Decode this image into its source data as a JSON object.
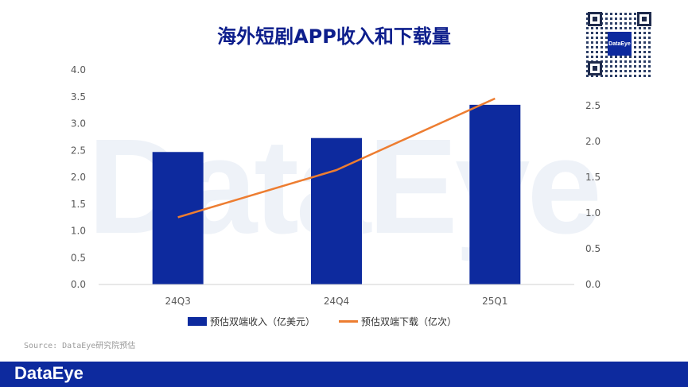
{
  "title": "海外短剧APP收入和下载量",
  "watermark": "DataEye",
  "source": "Source: DataEye研究院预估",
  "footer_logo": "DataEye",
  "qr_label": "DataEye",
  "chart_data": {
    "type": "bar",
    "categories": [
      "24Q3",
      "24Q4",
      "25Q1"
    ],
    "series": [
      {
        "name": "预估双端收入（亿美元）",
        "type": "bar",
        "axis": "left",
        "values": [
          2.47,
          2.73,
          3.35
        ]
      },
      {
        "name": "预估双端下载（亿次）",
        "type": "line",
        "axis": "right",
        "values": [
          0.94,
          1.6,
          2.6
        ]
      }
    ],
    "y_left": {
      "min": 0,
      "max": 4,
      "step": 0.5,
      "ticks": [
        "0.0",
        "0.5",
        "1.0",
        "1.5",
        "2.0",
        "2.5",
        "3.0",
        "3.5",
        "4.0"
      ]
    },
    "y_right": {
      "min": 0,
      "max": 3,
      "step": 0.5,
      "ticks": [
        "0.0",
        "0.5",
        "1.0",
        "1.5",
        "2.0",
        "2.5"
      ]
    },
    "grid": false,
    "legend_position": "bottom",
    "colors": {
      "bar": "#0d2a9e",
      "line": "#ed7d31"
    }
  }
}
